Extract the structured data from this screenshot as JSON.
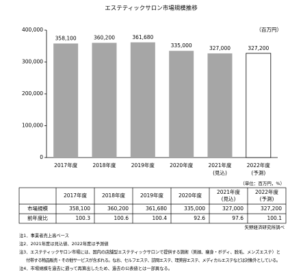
{
  "chart_data": {
    "type": "bar",
    "title": "エステティックサロン市場規模推移",
    "y_unit": "（百万円）",
    "categories": [
      "2017年度",
      "2018年度",
      "2019年度",
      "2020年度",
      "2021年度",
      "2022年度"
    ],
    "category_notes": [
      null,
      null,
      null,
      null,
      "(見込)",
      "(予測)"
    ],
    "values": [
      358100,
      360200,
      361680,
      335000,
      327000,
      327200
    ],
    "value_labels": [
      "358,100",
      "360,200",
      "361,680",
      "335,000",
      "327,000",
      "327,200"
    ],
    "colors": [
      "#a6a6a6",
      "#a6a6a6",
      "#a6a6a6",
      "#a6a6a6",
      "#a6a6a6",
      "#ffffff"
    ],
    "ylim": [
      0,
      400000
    ],
    "yticks": [
      0,
      {
        "value": 100000,
        "label": "100,000"
      },
      {
        "value": 200000,
        "label": "200,000"
      },
      {
        "value": 300000,
        "label": "300,000"
      },
      {
        "value": 400000,
        "label": "400,000"
      }
    ],
    "grid": false
  },
  "table": {
    "unit": "（単位：百万円，%）",
    "header": [
      [
        "2017年度"
      ],
      [
        "2018年度"
      ],
      [
        "2019年度"
      ],
      [
        "2020年度"
      ],
      [
        "2021年度",
        "(見込)"
      ],
      [
        "2022年度",
        "(予測)"
      ]
    ],
    "rows": [
      [
        "市場規模",
        "358,100",
        "360,200",
        "361,680",
        "335,000",
        "327,000",
        "327,200"
      ],
      [
        "前年度比",
        "100.3",
        "100.6",
        "100.4",
        "92.6",
        "97.6",
        "100.1"
      ]
    ]
  },
  "source": "矢野経済研究所調べ",
  "notes": [
    "注1．事業者売上高ベース",
    "注2．2021年度は見込値、2022年度は予測値",
    "注3．エステティックサロン市場には、国内の店舗型エステティックサロンで提供する施術（美顔、痩身・ボディ、脱毛、メンズエステ）と",
    "付帯する物品販売・その他サービスが含まれる。なお、セルフエステ、訪問エステ、理美容エステ、メディカルエステなどは対象外としている。",
    "注4．市場規模を過去に遡って再算出したため、過去の公表値とは一部異なる。"
  ]
}
